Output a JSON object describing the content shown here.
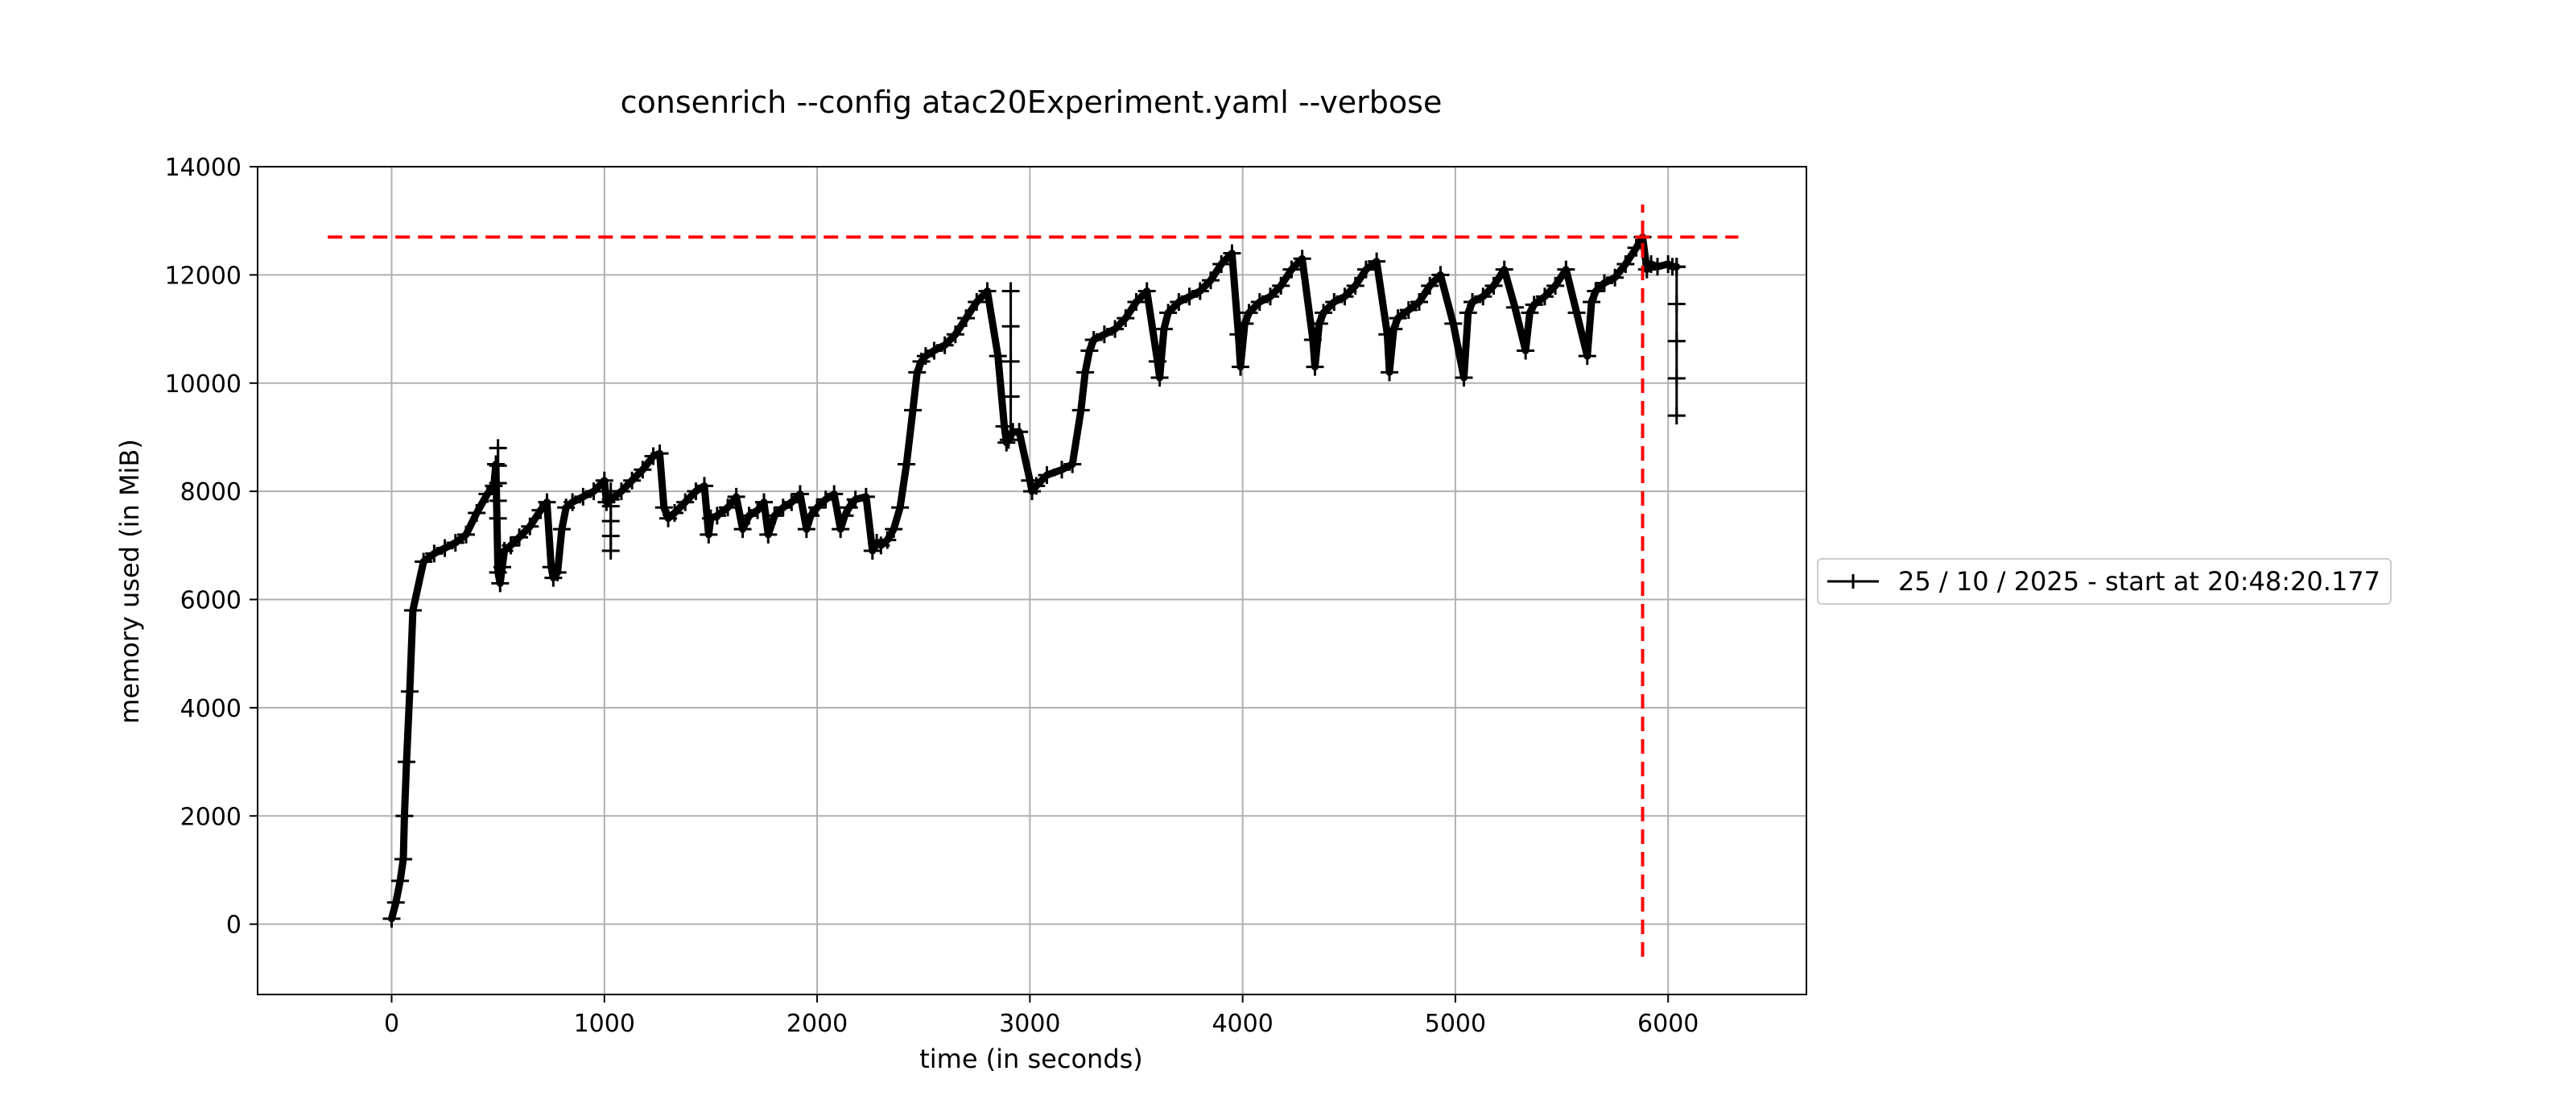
{
  "chart_data": {
    "type": "line",
    "title": "consenrich --config atac20Experiment.yaml --verbose",
    "xlabel": "time (in seconds)",
    "ylabel": "memory used (in MiB)",
    "xlim": [
      -630,
      6650
    ],
    "ylim": [
      -1300,
      14000
    ],
    "xticks": [
      0,
      1000,
      2000,
      3000,
      4000,
      5000,
      6000
    ],
    "yticks": [
      0,
      2000,
      4000,
      6000,
      8000,
      10000,
      12000,
      14000
    ],
    "xtick_labels": [
      "0",
      "1000",
      "2000",
      "3000",
      "4000",
      "5000",
      "6000"
    ],
    "ytick_labels": [
      "0",
      "2000",
      "4000",
      "6000",
      "8000",
      "10000",
      "12000",
      "14000"
    ],
    "grid": true,
    "legend_position": "outside-right",
    "series": [
      {
        "name": "25 / 10 / 2025 - start at 20:48:20.177",
        "color": "#000000",
        "marker": "+",
        "x": [
          0,
          20,
          40,
          55,
          60,
          70,
          85,
          100,
          150,
          200,
          250,
          300,
          350,
          400,
          450,
          480,
          490,
          500,
          510,
          520,
          530,
          560,
          600,
          650,
          700,
          730,
          750,
          760,
          780,
          800,
          820,
          850,
          900,
          950,
          1000,
          1010,
          1030,
          1080,
          1130,
          1180,
          1230,
          1260,
          1280,
          1300,
          1330,
          1380,
          1430,
          1470,
          1490,
          1500,
          1530,
          1580,
          1620,
          1650,
          1680,
          1720,
          1750,
          1770,
          1800,
          1840,
          1880,
          1920,
          1950,
          1970,
          2000,
          2040,
          2080,
          2110,
          2130,
          2150,
          2180,
          2230,
          2260,
          2280,
          2300,
          2330,
          2360,
          2390,
          2420,
          2450,
          2470,
          2490,
          2510,
          2550,
          2600,
          2650,
          2700,
          2750,
          2800,
          2850,
          2880,
          2890,
          2900,
          2920,
          2950,
          3000,
          3010,
          3030,
          3080,
          3150,
          3200,
          3240,
          3260,
          3280,
          3300,
          3350,
          3400,
          3450,
          3500,
          3550,
          3600,
          3610,
          3630,
          3650,
          3700,
          3750,
          3800,
          3850,
          3900,
          3950,
          3980,
          3990,
          4010,
          4030,
          4080,
          4130,
          4180,
          4230,
          4280,
          4330,
          4340,
          4360,
          4380,
          4430,
          4480,
          4530,
          4580,
          4630,
          4680,
          4690,
          4710,
          4730,
          4780,
          4830,
          4880,
          4930,
          4990,
          5040,
          5060,
          5080,
          5130,
          5180,
          5230,
          5280,
          5330,
          5350,
          5370,
          5420,
          5470,
          5520,
          5570,
          5620,
          5640,
          5660,
          5700,
          5750,
          5800,
          5850,
          5880,
          5900,
          5920,
          5950,
          6000,
          6020,
          6040
        ],
        "y": [
          100,
          400,
          800,
          1200,
          2000,
          3000,
          4300,
          5800,
          6700,
          6850,
          6950,
          7050,
          7200,
          7600,
          7950,
          8100,
          8500,
          6500,
          6300,
          6600,
          6900,
          7000,
          7150,
          7350,
          7650,
          7800,
          6600,
          6400,
          6500,
          7300,
          7700,
          7800,
          7900,
          8000,
          8200,
          7800,
          7850,
          8000,
          8200,
          8400,
          8650,
          8700,
          7700,
          7500,
          7600,
          7800,
          8000,
          8100,
          7200,
          7500,
          7550,
          7700,
          7900,
          7300,
          7550,
          7650,
          7800,
          7200,
          7550,
          7700,
          7800,
          7950,
          7300,
          7550,
          7700,
          7850,
          7950,
          7300,
          7550,
          7700,
          7850,
          7900,
          6900,
          7050,
          7000,
          7100,
          7300,
          7700,
          8500,
          9500,
          10200,
          10400,
          10500,
          10600,
          10700,
          10900,
          11200,
          11500,
          11700,
          10500,
          9200,
          8900,
          8950,
          9100,
          9100,
          8200,
          8000,
          8100,
          8300,
          8400,
          8500,
          9500,
          10200,
          10600,
          10800,
          10900,
          11000,
          11200,
          11500,
          11700,
          10400,
          10100,
          11000,
          11300,
          11500,
          11600,
          11700,
          11900,
          12200,
          12400,
          10900,
          10300,
          11100,
          11300,
          11500,
          11600,
          11800,
          12100,
          12300,
          10800,
          10300,
          11100,
          11300,
          11500,
          11600,
          11800,
          12100,
          12250,
          10900,
          10200,
          11000,
          11200,
          11350,
          11500,
          11800,
          12000,
          11100,
          10100,
          11300,
          11500,
          11600,
          11800,
          12100,
          11400,
          10600,
          11300,
          11450,
          11600,
          11800,
          12100,
          11300,
          10500,
          11500,
          11700,
          11850,
          11950,
          12200,
          12500,
          12700,
          12100,
          12200,
          12150,
          12200,
          12150,
          12150
        ]
      }
    ],
    "error_bars": [
      {
        "x": 500,
        "y_low": 7500,
        "y_high": 8800
      },
      {
        "x": 1030,
        "y_low": 6900,
        "y_high": 8000
      },
      {
        "x": 2910,
        "y_low": 9100,
        "y_high": 11700
      },
      {
        "x": 6040,
        "y_low": 9400,
        "y_high": 12150
      }
    ],
    "reference_lines": [
      {
        "orientation": "horizontal",
        "y": 12700,
        "x_from": -300,
        "x_to": 6330,
        "color": "#ff0000",
        "style": "dashed"
      },
      {
        "orientation": "vertical",
        "x": 5880,
        "y_from": -600,
        "y_to": 13300,
        "color": "#ff0000",
        "style": "dashed"
      }
    ]
  }
}
